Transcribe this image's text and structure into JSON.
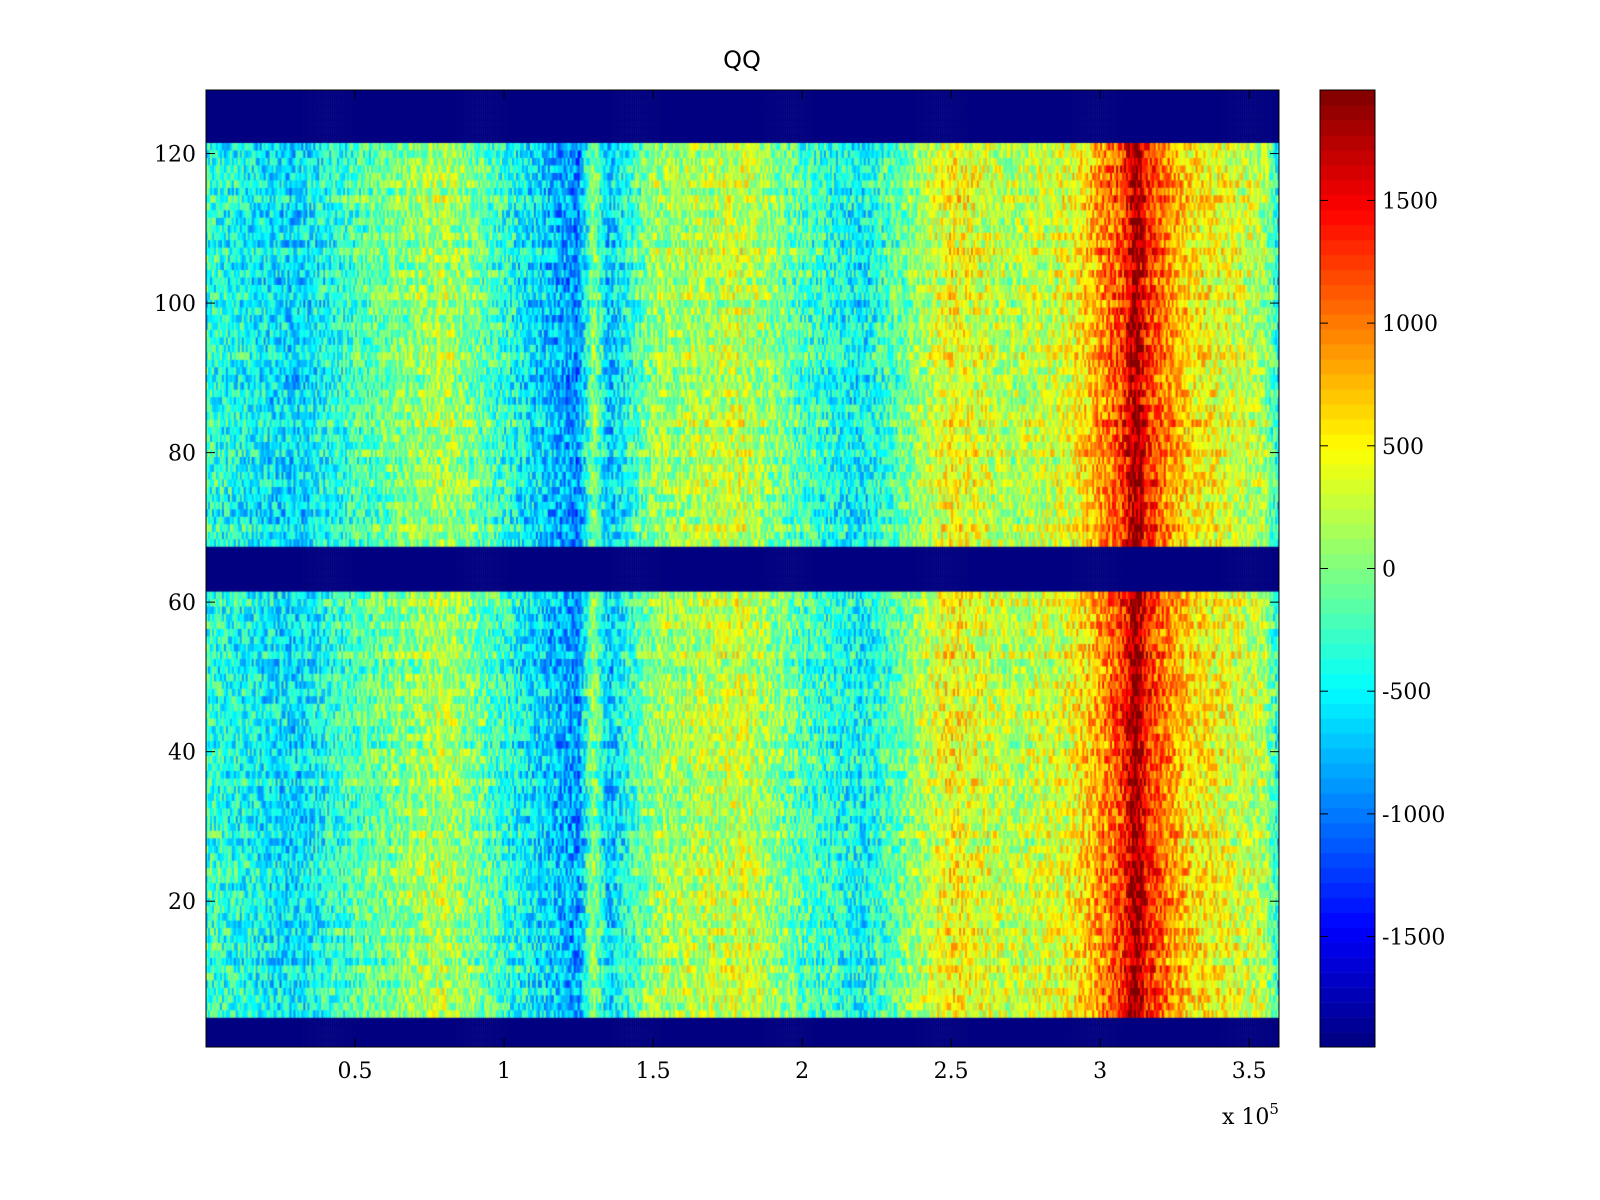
{
  "chart_data": {
    "type": "heatmap",
    "title": "QQ",
    "xlabel": "",
    "ylabel": "",
    "x_exponent_label": "x 10",
    "x_exponent": "5",
    "xlim": [
      0,
      3.6
    ],
    "ylim": [
      0.5,
      128.5
    ],
    "x_ticks": [
      0.5,
      1,
      1.5,
      2,
      2.5,
      3,
      3.5
    ],
    "x_tick_labels": [
      "0.5",
      "1",
      "1.5",
      "2",
      "2.5",
      "3",
      "3.5"
    ],
    "y_ticks": [
      20,
      40,
      60,
      80,
      100,
      120
    ],
    "y_tick_labels": [
      "20",
      "40",
      "60",
      "80",
      "100",
      "120"
    ],
    "colorbar": {
      "colormap": "jet",
      "range": [
        -1950,
        1950
      ],
      "ticks": [
        -1500,
        -1000,
        -500,
        0,
        500,
        1000,
        1500
      ],
      "tick_labels": [
        "-1500",
        "-1000",
        "-500",
        "0",
        "500",
        "1000",
        "1500"
      ]
    },
    "masked_row_bands": [
      [
        1,
        4
      ],
      [
        62,
        67
      ],
      [
        122,
        128
      ]
    ],
    "column_profile_x": [
      0,
      0.3,
      0.5,
      0.8,
      1.0,
      1.25,
      1.3,
      1.35,
      1.5,
      1.8,
      2.0,
      2.2,
      2.5,
      2.7,
      2.9,
      3.08,
      3.12,
      3.16,
      3.3,
      3.55,
      3.6
    ],
    "column_profile_value": [
      -300,
      -600,
      -200,
      200,
      -300,
      -900,
      100,
      -700,
      100,
      300,
      -200,
      -500,
      500,
      200,
      400,
      1300,
      1950,
      1300,
      600,
      200,
      -400
    ],
    "noise_amplitude": 450,
    "colors": {
      "masked": "#00008f",
      "background": "#ffffff"
    }
  }
}
